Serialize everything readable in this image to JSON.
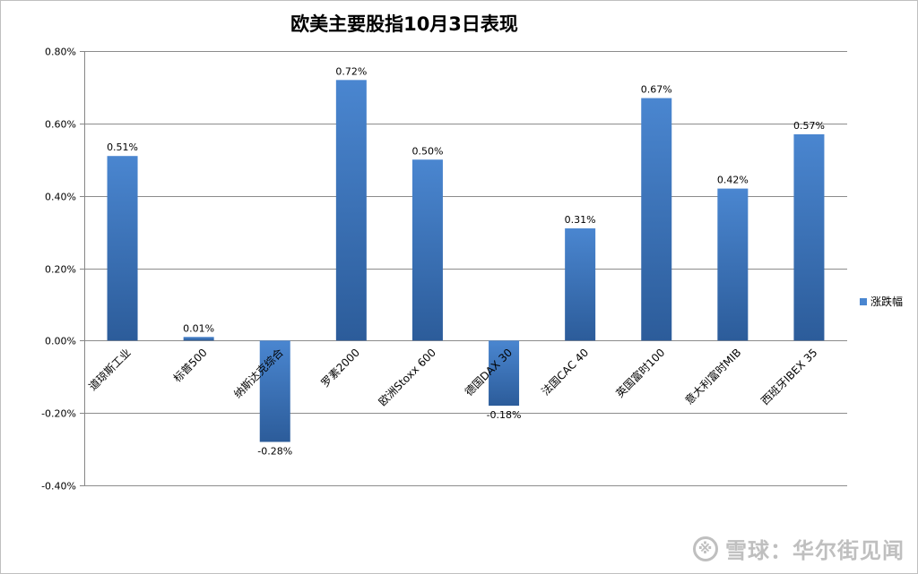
{
  "chart_data": {
    "type": "bar",
    "title": "欧美主要股指10月3日表现",
    "categories": [
      "道琼斯工业",
      "标普500",
      "纳斯达克综合",
      "罗素2000",
      "欧洲Stoxx 600",
      "德国DAX 30",
      "法国CAC 40",
      "英国富时100",
      "意大利富时MIB",
      "西班牙IBEX 35"
    ],
    "series": [
      {
        "name": "涨跌幅",
        "values": [
          0.51,
          0.01,
          -0.28,
          0.72,
          0.5,
          -0.18,
          0.31,
          0.67,
          0.42,
          0.57
        ],
        "labels": [
          "0.51%",
          "0.01%",
          "-0.28%",
          "0.72%",
          "0.50%",
          "-0.18%",
          "0.31%",
          "0.67%",
          "0.42%",
          "0.57%"
        ]
      }
    ],
    "ylim": [
      -0.4,
      0.8
    ],
    "yticks": [
      0.8,
      0.6,
      0.4,
      0.2,
      0.0,
      -0.2,
      -0.4
    ],
    "ytick_labels": [
      "0.80%",
      "0.60%",
      "0.40%",
      "0.20%",
      "0.00%",
      "-0.20%",
      "-0.40%"
    ],
    "grid": true,
    "legend_position": "right",
    "colors": {
      "bar_top": "#4a86d0",
      "bar_bottom": "#2c5c9a",
      "grid": "#8c8c8c",
      "axis": "#868686"
    }
  },
  "watermark": {
    "logo": "※",
    "text": "雪球：华尔街见闻"
  }
}
